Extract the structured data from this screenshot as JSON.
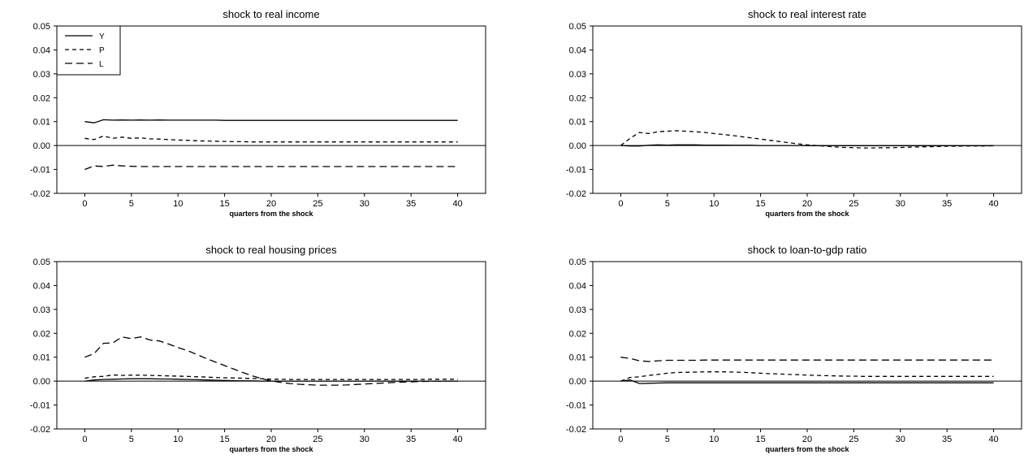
{
  "chart_data": [
    {
      "type": "line",
      "title": "shock to real income",
      "xlabel": "quarters from the shock",
      "ylabel": "",
      "ylim": [
        -0.02,
        0.05
      ],
      "xlim": [
        -3,
        43
      ],
      "xticks": [
        0,
        5,
        10,
        15,
        20,
        25,
        30,
        35,
        40
      ],
      "yticks": [
        "-0.02",
        "-0.01",
        "0.00",
        "0.01",
        "0.02",
        "0.03",
        "0.04",
        "0.05"
      ],
      "zero_line": true,
      "grid": false,
      "legend": {
        "position": "top-left",
        "entries": [
          "Y",
          "P",
          "L"
        ]
      },
      "x": [
        0,
        1,
        2,
        3,
        4,
        5,
        6,
        7,
        8,
        9,
        10,
        11,
        12,
        13,
        14,
        15,
        16,
        17,
        18,
        19,
        20,
        21,
        22,
        23,
        24,
        25,
        26,
        27,
        28,
        29,
        30,
        31,
        32,
        33,
        34,
        35,
        36,
        37,
        38,
        39,
        40
      ],
      "series": [
        {
          "name": "Y",
          "style": "solid",
          "values": [
            0.01,
            0.0095,
            0.0108,
            0.0106,
            0.0107,
            0.0106,
            0.0107,
            0.0106,
            0.0107,
            0.0106,
            0.0106,
            0.0106,
            0.0106,
            0.0106,
            0.0106,
            0.0105,
            0.0105,
            0.0105,
            0.0105,
            0.0105,
            0.0105,
            0.0105,
            0.0105,
            0.0105,
            0.0105,
            0.0105,
            0.0105,
            0.0105,
            0.0105,
            0.0105,
            0.0105,
            0.0105,
            0.0105,
            0.0105,
            0.0105,
            0.0105,
            0.0105,
            0.0105,
            0.0105,
            0.0105,
            0.0105
          ]
        },
        {
          "name": "P",
          "style": "short-dash",
          "values": [
            0.003,
            0.0025,
            0.004,
            0.003,
            0.0035,
            0.003,
            0.0032,
            0.0028,
            0.0027,
            0.0025,
            0.0023,
            0.0022,
            0.002,
            0.0019,
            0.0018,
            0.0017,
            0.0016,
            0.0016,
            0.0015,
            0.0015,
            0.0015,
            0.0015,
            0.0015,
            0.0015,
            0.0015,
            0.0015,
            0.0015,
            0.0015,
            0.0015,
            0.0015,
            0.0015,
            0.0015,
            0.0015,
            0.0015,
            0.0015,
            0.0015,
            0.0015,
            0.0015,
            0.0015,
            0.0015,
            0.0015
          ]
        },
        {
          "name": "L",
          "style": "long-dash",
          "values": [
            -0.01,
            -0.0085,
            -0.0088,
            -0.0082,
            -0.0085,
            -0.0087,
            -0.0088,
            -0.0088,
            -0.0088,
            -0.0088,
            -0.0088,
            -0.0088,
            -0.0088,
            -0.0088,
            -0.0088,
            -0.0088,
            -0.0088,
            -0.0088,
            -0.0088,
            -0.0088,
            -0.0088,
            -0.0088,
            -0.0088,
            -0.0088,
            -0.0088,
            -0.0088,
            -0.0088,
            -0.0088,
            -0.0088,
            -0.0088,
            -0.0088,
            -0.0088,
            -0.0088,
            -0.0088,
            -0.0088,
            -0.0088,
            -0.0088,
            -0.0088,
            -0.0088,
            -0.0088,
            -0.0088
          ]
        }
      ]
    },
    {
      "type": "line",
      "title": "shock to real interest rate",
      "xlabel": "quarters from the shock",
      "ylabel": "",
      "ylim": [
        -0.02,
        0.05
      ],
      "xlim": [
        -3,
        43
      ],
      "xticks": [
        0,
        5,
        10,
        15,
        20,
        25,
        30,
        35,
        40
      ],
      "yticks": [
        "-0.02",
        "-0.01",
        "0.00",
        "0.01",
        "0.02",
        "0.03",
        "0.04",
        "0.05"
      ],
      "zero_line": true,
      "grid": false,
      "x": [
        0,
        1,
        2,
        3,
        4,
        5,
        6,
        7,
        8,
        9,
        10,
        11,
        12,
        13,
        14,
        15,
        16,
        17,
        18,
        19,
        20,
        21,
        22,
        23,
        24,
        25,
        26,
        27,
        28,
        29,
        30,
        31,
        32,
        33,
        34,
        35,
        36,
        37,
        38,
        39,
        40
      ],
      "series": [
        {
          "name": "Y",
          "style": "solid",
          "values": [
            0.0,
            -0.0002,
            -0.0002,
            0.0001,
            0.0003,
            0.0002,
            0.0003,
            0.0003,
            0.0003,
            0.0002,
            0.0002,
            0.0002,
            0.0001,
            0.0001,
            0.0001,
            0.0,
            0.0,
            0.0,
            0.0,
            0.0,
            -0.0001,
            -0.0001,
            -0.0001,
            -0.0001,
            -0.0001,
            -0.0001,
            -0.0001,
            -0.0001,
            -0.0001,
            -0.0001,
            -0.0001,
            -0.0001,
            -0.0001,
            -0.0001,
            -0.0001,
            -0.0001,
            -0.0001,
            -0.0001,
            -0.0001,
            -0.0001,
            -0.0001
          ]
        },
        {
          "name": "P",
          "style": "short-dash",
          "values": [
            0.0,
            0.003,
            0.0055,
            0.005,
            0.0058,
            0.006,
            0.0062,
            0.006,
            0.0058,
            0.0055,
            0.005,
            0.0046,
            0.0042,
            0.0037,
            0.0032,
            0.0027,
            0.0022,
            0.0017,
            0.0012,
            0.0007,
            0.0003,
            0.0,
            -0.0003,
            -0.0006,
            -0.0008,
            -0.0009,
            -0.001,
            -0.001,
            -0.0009,
            -0.0009,
            -0.0008,
            -0.0007,
            -0.0006,
            -0.0005,
            -0.0004,
            -0.0003,
            -0.0003,
            -0.0002,
            -0.0002,
            -0.0002,
            -0.0001
          ]
        }
      ]
    },
    {
      "type": "line",
      "title": "shock to real housing prices",
      "xlabel": "quarters from the shock",
      "ylabel": "",
      "ylim": [
        -0.02,
        0.05
      ],
      "xlim": [
        -3,
        43
      ],
      "xticks": [
        0,
        5,
        10,
        15,
        20,
        25,
        30,
        35,
        40
      ],
      "yticks": [
        "-0.02",
        "-0.01",
        "0.00",
        "0.01",
        "0.02",
        "0.03",
        "0.04",
        "0.05"
      ],
      "zero_line": true,
      "grid": false,
      "x": [
        0,
        1,
        2,
        3,
        4,
        5,
        6,
        7,
        8,
        9,
        10,
        11,
        12,
        13,
        14,
        15,
        16,
        17,
        18,
        19,
        20,
        21,
        22,
        23,
        24,
        25,
        26,
        27,
        28,
        29,
        30,
        31,
        32,
        33,
        34,
        35,
        36,
        37,
        38,
        39,
        40
      ],
      "series": [
        {
          "name": "Y",
          "style": "solid",
          "values": [
            0.0,
            0.0005,
            0.0007,
            0.0008,
            0.0009,
            0.001,
            0.001,
            0.001,
            0.0009,
            0.0009,
            0.0008,
            0.0007,
            0.0006,
            0.0005,
            0.0004,
            0.0003,
            0.0002,
            0.0001,
            0.0001,
            0.0,
            0.0,
            0.0,
            0.0,
            0.0,
            0.0,
            0.0,
            0.0,
            0.0,
            0.0,
            0.0,
            0.0,
            0.0,
            0.0,
            0.0,
            0.0,
            0.0,
            0.0,
            0.0,
            0.0,
            0.0,
            0.0
          ]
        },
        {
          "name": "P",
          "style": "short-dash",
          "values": [
            0.0012,
            0.0018,
            0.002,
            0.0026,
            0.0024,
            0.0025,
            0.0025,
            0.0024,
            0.0023,
            0.0022,
            0.0021,
            0.002,
            0.0018,
            0.0017,
            0.0015,
            0.0014,
            0.0013,
            0.0012,
            0.0011,
            0.001,
            0.0008,
            0.0008,
            0.0007,
            0.0007,
            0.0007,
            0.0007,
            0.0007,
            0.0007,
            0.0007,
            0.0007,
            0.0007,
            0.0007,
            0.0007,
            0.0007,
            0.0007,
            0.0007,
            0.0007,
            0.0008,
            0.0008,
            0.0008,
            0.0008
          ]
        },
        {
          "name": "L",
          "style": "long-dash",
          "values": [
            0.01,
            0.0115,
            0.0158,
            0.016,
            0.0185,
            0.0178,
            0.0185,
            0.0172,
            0.0168,
            0.0155,
            0.014,
            0.0128,
            0.0112,
            0.0095,
            0.008,
            0.0065,
            0.005,
            0.0035,
            0.0022,
            0.001,
            0.0001,
            -0.0005,
            -0.001,
            -0.0013,
            -0.0015,
            -0.0017,
            -0.0017,
            -0.0017,
            -0.0016,
            -0.0014,
            -0.0012,
            -0.001,
            -0.0008,
            -0.0006,
            -0.0004,
            -0.0003,
            -0.0002,
            -0.0001,
            0.0,
            0.0,
            0.0
          ]
        }
      ]
    },
    {
      "type": "line",
      "title": "shock to loan-to-gdp ratio",
      "xlabel": "quarters from the shock",
      "ylabel": "",
      "ylim": [
        -0.02,
        0.05
      ],
      "xlim": [
        -3,
        43
      ],
      "xticks": [
        0,
        5,
        10,
        15,
        20,
        25,
        30,
        35,
        40
      ],
      "yticks": [
        "-0.02",
        "-0.01",
        "0.00",
        "0.01",
        "0.02",
        "0.03",
        "0.04",
        "0.05"
      ],
      "zero_line": true,
      "grid": false,
      "x": [
        0,
        1,
        2,
        3,
        4,
        5,
        6,
        7,
        8,
        9,
        10,
        11,
        12,
        13,
        14,
        15,
        16,
        17,
        18,
        19,
        20,
        21,
        22,
        23,
        24,
        25,
        26,
        27,
        28,
        29,
        30,
        31,
        32,
        33,
        34,
        35,
        36,
        37,
        38,
        39,
        40
      ],
      "series": [
        {
          "name": "Y",
          "style": "solid",
          "values": [
            0.0,
            0.0005,
            -0.001,
            -0.0009,
            -0.0008,
            -0.0007,
            -0.0007,
            -0.0007,
            -0.0007,
            -0.0007,
            -0.0007,
            -0.0007,
            -0.0007,
            -0.0007,
            -0.0007,
            -0.0007,
            -0.0007,
            -0.0007,
            -0.0007,
            -0.0007,
            -0.0007,
            -0.0007,
            -0.0007,
            -0.0007,
            -0.0007,
            -0.0007,
            -0.0007,
            -0.0007,
            -0.0007,
            -0.0007,
            -0.0007,
            -0.0007,
            -0.0007,
            -0.0007,
            -0.0007,
            -0.0007,
            -0.0007,
            -0.0007,
            -0.0007,
            -0.0007,
            -0.0007
          ]
        },
        {
          "name": "P",
          "style": "short-dash",
          "values": [
            0.0,
            0.0015,
            0.0018,
            0.0024,
            0.0028,
            0.0033,
            0.0036,
            0.0037,
            0.0038,
            0.0039,
            0.0039,
            0.0039,
            0.0038,
            0.0037,
            0.0035,
            0.0033,
            0.0031,
            0.003,
            0.0028,
            0.0027,
            0.0025,
            0.0024,
            0.0023,
            0.0022,
            0.0021,
            0.0021,
            0.002,
            0.002,
            0.002,
            0.002,
            0.002,
            0.002,
            0.002,
            0.002,
            0.002,
            0.002,
            0.002,
            0.002,
            0.002,
            0.002,
            0.002
          ]
        },
        {
          "name": "L",
          "style": "long-dash",
          "values": [
            0.01,
            0.0095,
            0.0085,
            0.0082,
            0.0085,
            0.0087,
            0.0087,
            0.0087,
            0.0087,
            0.0088,
            0.0088,
            0.0088,
            0.0088,
            0.0088,
            0.0088,
            0.0088,
            0.0088,
            0.0088,
            0.0088,
            0.0088,
            0.0088,
            0.0088,
            0.0088,
            0.0088,
            0.0088,
            0.0088,
            0.0088,
            0.0088,
            0.0088,
            0.0088,
            0.0088,
            0.0088,
            0.0088,
            0.0088,
            0.0088,
            0.0088,
            0.0088,
            0.0088,
            0.0088,
            0.0088,
            0.0088
          ]
        }
      ]
    }
  ]
}
